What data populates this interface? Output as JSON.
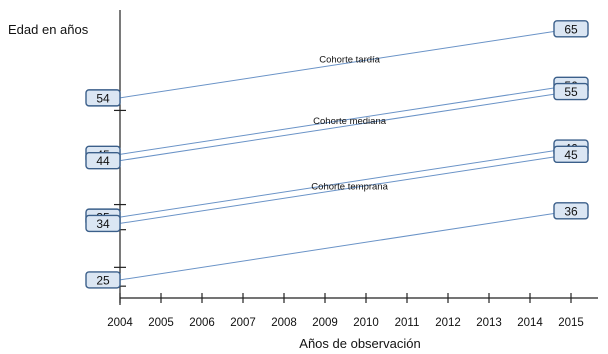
{
  "chart_data": {
    "type": "line",
    "title": "",
    "xlabel": "Años de observación",
    "ylabel": "Edad en años",
    "xlim": [
      2004,
      2015
    ],
    "ylim": [
      21,
      68
    ],
    "x_ticks": [
      2004,
      2005,
      2006,
      2007,
      2008,
      2009,
      2010,
      2011,
      2012,
      2013,
      2014,
      2015
    ],
    "y_minor_ticks": [
      24,
      27,
      33,
      37,
      52
    ],
    "grid": false,
    "legend": "none",
    "colors": {
      "series_line": "#6a93c7",
      "label_box_fill": "#dbe6f3",
      "label_box_stroke": "#3b5f8a",
      "axis": "#222222"
    },
    "series": [
      {
        "x": [
          2004,
          2015
        ],
        "values": [
          54,
          65
        ]
      },
      {
        "x": [
          2004,
          2015
        ],
        "values": [
          45,
          56
        ]
      },
      {
        "x": [
          2004,
          2015
        ],
        "values": [
          44,
          55
        ]
      },
      {
        "x": [
          2004,
          2015
        ],
        "values": [
          35,
          46
        ]
      },
      {
        "x": [
          2004,
          2015
        ],
        "values": [
          34,
          45
        ]
      },
      {
        "x": [
          2004,
          2015
        ],
        "values": [
          25,
          36
        ]
      }
    ],
    "annotations": [
      {
        "text": "Cohorte tardía",
        "x": 2009.6,
        "y": 59.6
      },
      {
        "text": "Cohorte mediana",
        "x": 2009.6,
        "y": 49.8
      },
      {
        "text": "Cohorte temprana",
        "x": 2009.6,
        "y": 39.4
      }
    ]
  }
}
